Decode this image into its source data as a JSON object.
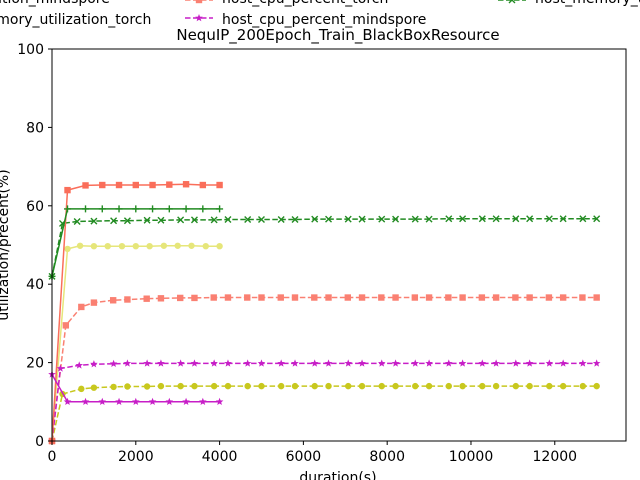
{
  "chart_data": {
    "type": "line",
    "title": "NequIP_200Epoch_Train_BlackBoxResource",
    "xlabel": "duration(s)",
    "ylabel": "utilization/precent(%)",
    "xlim": [
      0,
      13700
    ],
    "ylim": [
      0,
      100
    ],
    "xticks": [
      0,
      2000,
      4000,
      6000,
      8000,
      10000,
      12000
    ],
    "yticks": [
      0,
      20,
      40,
      60,
      80,
      100
    ],
    "grid": false,
    "legend_position": "top (partially cut off)",
    "legend_entries": [
      "utilization_mindspore",
      "host_cpu_percent_torch",
      "host_memory_u",
      "memory_utilization_torch",
      "host_cpu_percent_mindspore"
    ],
    "series": [
      {
        "name": "utilization_mindspore",
        "color": "#e6e67a",
        "dash": "solid",
        "marker": "circle",
        "x": [
          0,
          370,
          670,
          1000,
          1330,
          1670,
          2000,
          2330,
          2670,
          3000,
          3330,
          3670,
          4000
        ],
        "y": [
          0,
          49.0,
          49.8,
          49.7,
          49.7,
          49.7,
          49.7,
          49.7,
          49.8,
          49.8,
          49.8,
          49.7,
          49.7
        ]
      },
      {
        "name": "host_cpu_percent_torch",
        "color": "#fa8072",
        "dash": "dashed",
        "marker": "square",
        "x": [
          0,
          330,
          700,
          1000,
          1460,
          1800,
          2260,
          2600,
          3060,
          3400,
          3860,
          4200,
          4660,
          5000,
          5460,
          5800,
          6260,
          6600,
          7060,
          7400,
          7860,
          8200,
          8660,
          9000,
          9460,
          9800,
          10260,
          10600,
          11060,
          11400,
          11860,
          12200,
          12660,
          13000
        ],
        "y": [
          0,
          29.5,
          34.2,
          35.3,
          35.9,
          36.1,
          36.3,
          36.4,
          36.5,
          36.5,
          36.6,
          36.6,
          36.6,
          36.6,
          36.6,
          36.6,
          36.6,
          36.6,
          36.6,
          36.6,
          36.6,
          36.6,
          36.6,
          36.6,
          36.6,
          36.6,
          36.6,
          36.6,
          36.6,
          36.6,
          36.6,
          36.6,
          36.6,
          36.6
        ]
      },
      {
        "name": "host_memory_u",
        "color": "#228b22",
        "dash": "dashed",
        "marker": "x",
        "x": [
          0,
          250,
          600,
          1000,
          1470,
          1800,
          2270,
          2600,
          3070,
          3400,
          3870,
          4200,
          4670,
          5000,
          5470,
          5800,
          6270,
          6600,
          7070,
          7400,
          7870,
          8200,
          8670,
          9000,
          9470,
          9800,
          10270,
          10600,
          11070,
          11400,
          11870,
          12200,
          12670,
          13000
        ],
        "y": [
          42.0,
          55.5,
          56.0,
          56.1,
          56.2,
          56.2,
          56.3,
          56.3,
          56.4,
          56.4,
          56.4,
          56.5,
          56.5,
          56.5,
          56.5,
          56.5,
          56.6,
          56.6,
          56.6,
          56.6,
          56.6,
          56.6,
          56.6,
          56.6,
          56.7,
          56.7,
          56.7,
          56.7,
          56.7,
          56.7,
          56.7,
          56.7,
          56.7,
          56.7
        ]
      },
      {
        "name": "memory_utilization_torch",
        "color": "#c8c81e",
        "dash": "dashed",
        "marker": "circle",
        "x": [
          0,
          250,
          700,
          1000,
          1470,
          1800,
          2270,
          2600,
          3070,
          3400,
          3870,
          4200,
          4670,
          5000,
          5470,
          5800,
          6270,
          6600,
          7070,
          7400,
          7870,
          8200,
          8670,
          9000,
          9470,
          9800,
          10270,
          10600,
          11070,
          11400,
          11870,
          12200,
          12670,
          13000
        ],
        "y": [
          0,
          12.0,
          13.3,
          13.6,
          13.8,
          13.9,
          13.9,
          14.0,
          14.0,
          14.0,
          14.0,
          14.0,
          14.0,
          14.0,
          14.0,
          14.0,
          14.0,
          14.0,
          14.0,
          14.0,
          14.0,
          14.0,
          14.0,
          14.0,
          14.0,
          14.0,
          14.0,
          14.0,
          14.0,
          14.0,
          14.0,
          14.0,
          14.0,
          14.0
        ]
      },
      {
        "name": "host_cpu_percent_mindspore",
        "color": "#c71ec7",
        "dash": "dashed",
        "marker": "star",
        "x": [
          0,
          200,
          650,
          1000,
          1470,
          1800,
          2270,
          2600,
          3070,
          3400,
          3870,
          4200,
          4670,
          5000,
          5470,
          5800,
          6270,
          6600,
          7070,
          7400,
          7870,
          8200,
          8670,
          9000,
          9470,
          9800,
          10270,
          10600,
          11070,
          11400,
          11870,
          12200,
          12670,
          13000
        ],
        "y": [
          0,
          18.5,
          19.3,
          19.6,
          19.7,
          19.8,
          19.8,
          19.8,
          19.8,
          19.8,
          19.8,
          19.8,
          19.8,
          19.8,
          19.8,
          19.8,
          19.8,
          19.8,
          19.8,
          19.8,
          19.8,
          19.8,
          19.8,
          19.8,
          19.8,
          19.8,
          19.8,
          19.8,
          19.8,
          19.8,
          19.8,
          19.8,
          19.8,
          19.8
        ]
      },
      {
        "color": "#fa6e5a",
        "dash": "solid",
        "marker": "square",
        "x": [
          0,
          370,
          800,
          1200,
          1600,
          2000,
          2400,
          2800,
          3200,
          3600,
          4000
        ],
        "y": [
          0,
          64.0,
          65.2,
          65.3,
          65.3,
          65.3,
          65.3,
          65.4,
          65.5,
          65.3,
          65.3
        ]
      },
      {
        "color": "#228b22",
        "dash": "solid",
        "marker": "plus",
        "x": [
          0,
          370,
          800,
          1200,
          1600,
          2000,
          2400,
          2800,
          3200,
          3600,
          4000
        ],
        "y": [
          42.0,
          59.2,
          59.2,
          59.2,
          59.2,
          59.2,
          59.2,
          59.2,
          59.2,
          59.2,
          59.2
        ]
      },
      {
        "color": "#c71ec7",
        "dash": "solid",
        "marker": "star",
        "x": [
          0,
          370,
          800,
          1200,
          1600,
          2000,
          2400,
          2800,
          3200,
          3600,
          4000
        ],
        "y": [
          17.0,
          10.0,
          10.0,
          10.0,
          10.0,
          10.0,
          10.0,
          10.0,
          10.0,
          10.0,
          10.0
        ]
      }
    ]
  }
}
